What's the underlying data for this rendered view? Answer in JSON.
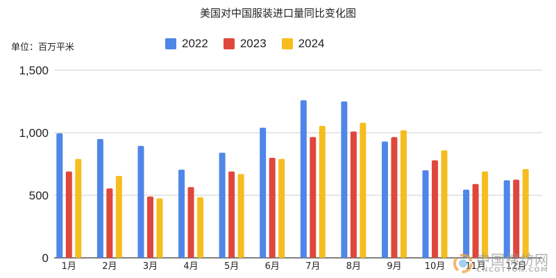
{
  "chart_data": {
    "type": "bar",
    "title": "美国对中国服装进口量同比变化图",
    "unit_label": "单位：百万平米",
    "categories": [
      "1月",
      "2月",
      "3月",
      "4月",
      "5月",
      "6月",
      "7月",
      "8月",
      "9月",
      "10月",
      "11月",
      "12月"
    ],
    "series": [
      {
        "name": "2022",
        "color": "#4f86e8",
        "values": [
          995,
          950,
          895,
          705,
          840,
          1040,
          1260,
          1250,
          930,
          700,
          545,
          620
        ]
      },
      {
        "name": "2023",
        "color": "#e0473c",
        "values": [
          690,
          555,
          490,
          565,
          690,
          800,
          965,
          1010,
          965,
          780,
          590,
          625
        ]
      },
      {
        "name": "2024",
        "color": "#f5bd1f",
        "values": [
          790,
          655,
          475,
          485,
          670,
          790,
          1055,
          1080,
          1020,
          860,
          690,
          710
        ]
      }
    ],
    "ylim": [
      0,
      1500
    ],
    "yticks": [
      0,
      500,
      1000,
      1500
    ],
    "ytick_labels": [
      "0",
      "500",
      "1,000",
      "1,500"
    ],
    "grid": true,
    "legend_position": "top"
  },
  "watermark": {
    "cn": "中国棉纺网",
    "en": "CNCOTTON.COM"
  }
}
